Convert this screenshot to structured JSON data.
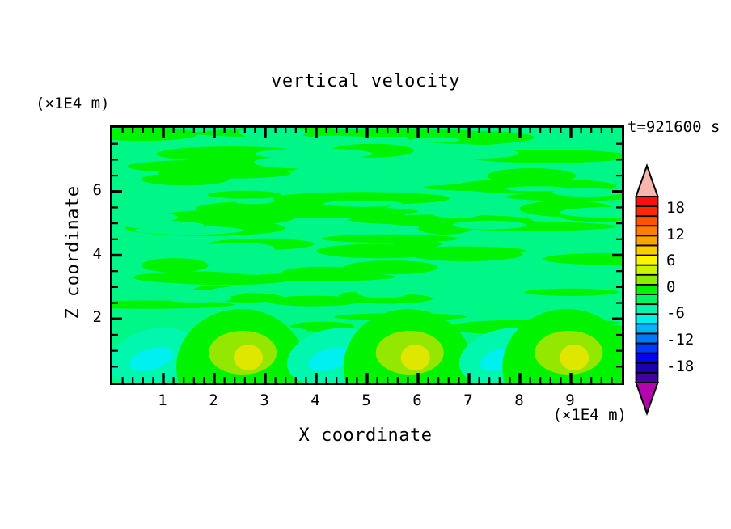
{
  "chart_data": {
    "type": "heatmap",
    "title": "vertical velocity",
    "annotation": "t=921600 s",
    "xlabel": "X coordinate",
    "ylabel": "Z coordinate",
    "x_unit_label": "(×1E4 m)",
    "z_unit_label": "(×1E4 m)",
    "xlim": [
      0,
      10
    ],
    "zlim": [
      0,
      8
    ],
    "x_major_ticks": [
      1,
      2,
      3,
      4,
      5,
      6,
      7,
      8,
      9
    ],
    "x_minor_step": 0.2,
    "z_major_ticks": [
      2,
      4,
      6
    ],
    "z_minor_step": 0.5,
    "grid": false,
    "colorbar": {
      "position": "right",
      "labels": [
        18,
        12,
        6,
        0,
        -6,
        -12,
        -18
      ],
      "label_step": 6,
      "segment_colors": [
        "#F9100C",
        "#FB2A00",
        "#FC5500",
        "#FC7E00",
        "#FCA300",
        "#FCCB00",
        "#FCF500",
        "#C9F500",
        "#8EEC00",
        "#00F300",
        "#00F65E",
        "#00F7AD",
        "#00EFEF",
        "#00B5F9",
        "#007AF9",
        "#003AF9",
        "#0505E8",
        "#1C00B2",
        "#43009E"
      ],
      "over_arrow_color": "#F8B6AE",
      "under_arrow_color": "#B503AE"
    },
    "field": {
      "description": "near-zero streaky horizontal banding aloft; alternating downdraft/updraft cells below z≈2",
      "background_color": "#00F787",
      "streak_color": "#00F300",
      "texture": {
        "seed": 1337,
        "streak_count": 62,
        "gap_count": 30,
        "streak_zone_z": [
          1.6,
          8
        ]
      },
      "cell_colors": {
        "positive_outer": "#00F300",
        "positive_mid": "#93E700",
        "positive_core": "#DFE600",
        "negative_outer": "#00F7AD",
        "negative_core": "#00EFEF"
      },
      "bottom_cells": [
        {
          "x_center": 0.8,
          "z_center": 0.8,
          "sign": "negative",
          "approx_peak": -6
        },
        {
          "x_center": 2.62,
          "z_center": 0.8,
          "sign": "positive",
          "approx_peak": 8
        },
        {
          "x_center": 4.3,
          "z_center": 0.8,
          "sign": "negative",
          "approx_peak": -6
        },
        {
          "x_center": 5.9,
          "z_center": 0.8,
          "sign": "positive",
          "approx_peak": 8
        },
        {
          "x_center": 7.68,
          "z_center": 0.8,
          "sign": "negative",
          "approx_peak": -6
        },
        {
          "x_center": 9.02,
          "z_center": 0.8,
          "sign": "positive",
          "approx_peak": 8
        }
      ]
    }
  }
}
